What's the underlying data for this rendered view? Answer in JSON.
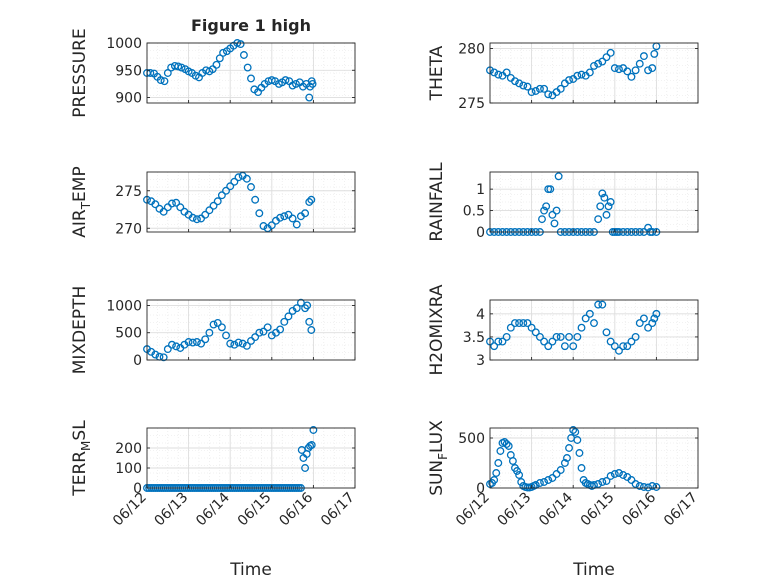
{
  "figure": {
    "title": "Figure 1 high"
  },
  "colors": {
    "marker": "#0072BD",
    "axis": "#262626",
    "grid": "#DDDDDD",
    "background": "#FFFFFF"
  },
  "chart_data": [
    {
      "id": "pressure",
      "type": "scatter",
      "title": "Figure 1 high",
      "ylabel": "PRESSURE",
      "xlabel": "",
      "ylim": [
        890,
        1000
      ],
      "yticks": [
        "900",
        "950",
        "1000"
      ],
      "ytick_values": [
        900,
        950,
        1000
      ],
      "xlim": [
        0,
        5
      ],
      "xticks": [],
      "grid": "major+minor",
      "x": [
        0,
        0.08,
        0.17,
        0.25,
        0.33,
        0.42,
        0.5,
        0.58,
        0.67,
        0.75,
        0.83,
        0.92,
        1.0,
        1.08,
        1.17,
        1.25,
        1.33,
        1.42,
        1.5,
        1.58,
        1.67,
        1.75,
        1.83,
        1.92,
        2.0,
        2.08,
        2.17,
        2.25,
        2.33,
        2.42,
        2.5,
        2.58,
        2.67,
        2.75,
        2.83,
        2.92,
        3.0,
        3.08,
        3.17,
        3.25,
        3.33,
        3.42,
        3.5,
        3.58,
        3.67,
        3.75,
        3.83,
        3.9,
        3.92,
        3.96,
        3.98
      ],
      "y": [
        945,
        945,
        944,
        938,
        932,
        930,
        945,
        955,
        958,
        957,
        955,
        952,
        948,
        945,
        940,
        937,
        945,
        950,
        948,
        952,
        960,
        972,
        982,
        985,
        990,
        995,
        1000,
        998,
        978,
        955,
        935,
        915,
        910,
        918,
        925,
        930,
        932,
        930,
        925,
        928,
        932,
        930,
        922,
        925,
        928,
        920,
        925,
        900,
        920,
        930,
        925
      ]
    },
    {
      "id": "theta",
      "type": "scatter",
      "ylabel": "THETA",
      "xlabel": "",
      "ylim": [
        275,
        280.5
      ],
      "yticks": [
        "275",
        "280"
      ],
      "ytick_values": [
        275,
        280
      ],
      "xlim": [
        0,
        5
      ],
      "xticks": [],
      "grid": "major+minor",
      "x": [
        0,
        0.1,
        0.2,
        0.3,
        0.4,
        0.5,
        0.6,
        0.7,
        0.8,
        0.9,
        1.0,
        1.1,
        1.2,
        1.3,
        1.4,
        1.5,
        1.6,
        1.7,
        1.8,
        1.9,
        2.0,
        2.1,
        2.2,
        2.3,
        2.4,
        2.5,
        2.6,
        2.7,
        2.8,
        2.9,
        3.0,
        3.1,
        3.2,
        3.3,
        3.4,
        3.5,
        3.6,
        3.7,
        3.8,
        3.9,
        3.95,
        4.0
      ],
      "y": [
        278,
        277.8,
        277.6,
        277.5,
        277.8,
        277.3,
        277,
        276.8,
        276.6,
        276.5,
        276,
        276.1,
        276.3,
        276.3,
        275.8,
        275.7,
        276,
        276.3,
        276.8,
        277.1,
        277.2,
        277.5,
        277.6,
        277.5,
        277.8,
        278.4,
        278.6,
        278.8,
        279.2,
        279.6,
        278.2,
        278.1,
        278.2,
        277.9,
        277.4,
        278,
        278.6,
        279.3,
        278,
        278.2,
        279.5,
        280.2
      ]
    },
    {
      "id": "air_temp",
      "type": "scatter",
      "ylabel": "AIR_TEMP",
      "ylabel_main": "AIR",
      "ylabel_sub": "T",
      "ylabel_rest": "EMP",
      "xlabel": "",
      "ylim": [
        269.5,
        277.5
      ],
      "yticks": [
        "270",
        "275"
      ],
      "ytick_values": [
        270,
        275
      ],
      "xlim": [
        0,
        5
      ],
      "xticks": [],
      "grid": "major+minor",
      "x": [
        0,
        0.1,
        0.2,
        0.3,
        0.4,
        0.5,
        0.6,
        0.7,
        0.8,
        0.9,
        1.0,
        1.1,
        1.2,
        1.3,
        1.4,
        1.5,
        1.6,
        1.7,
        1.8,
        1.9,
        2.0,
        2.1,
        2.2,
        2.3,
        2.4,
        2.5,
        2.6,
        2.7,
        2.8,
        2.9,
        3.0,
        3.1,
        3.2,
        3.3,
        3.4,
        3.5,
        3.6,
        3.7,
        3.8,
        3.9,
        3.95
      ],
      "y": [
        273.8,
        273.6,
        273.2,
        272.6,
        272.2,
        272.8,
        273.3,
        273.4,
        272.8,
        272.2,
        271.8,
        271.4,
        271.2,
        271.3,
        271.8,
        272.4,
        273,
        273.6,
        274.4,
        275,
        275.6,
        276.2,
        276.8,
        277,
        276.6,
        275.5,
        273.8,
        272,
        270.3,
        270,
        270.4,
        271,
        271.4,
        271.6,
        271.8,
        271.3,
        270.5,
        271.6,
        272,
        273.5,
        273.8
      ]
    },
    {
      "id": "rainfall",
      "type": "scatter",
      "ylabel": "RAINFALL",
      "xlabel": "",
      "ylim": [
        0,
        1.4
      ],
      "yticks": [
        "0",
        "0.5",
        "1"
      ],
      "ytick_values": [
        0,
        0.5,
        1
      ],
      "xlim": [
        0,
        5
      ],
      "xticks": [],
      "grid": "major+minor",
      "x": [
        0,
        0.1,
        0.2,
        0.3,
        0.4,
        0.5,
        0.6,
        0.7,
        0.8,
        0.9,
        1.0,
        1.1,
        1.2,
        1.25,
        1.3,
        1.35,
        1.4,
        1.45,
        1.5,
        1.55,
        1.6,
        1.65,
        1.7,
        1.8,
        1.9,
        2.0,
        2.1,
        2.2,
        2.3,
        2.4,
        2.5,
        2.6,
        2.65,
        2.7,
        2.75,
        2.8,
        2.85,
        2.9,
        2.95,
        3.0,
        3.05,
        3.1,
        3.2,
        3.3,
        3.4,
        3.5,
        3.6,
        3.7,
        3.8,
        3.85,
        3.9,
        4.0
      ],
      "y": [
        0,
        0,
        0,
        0,
        0,
        0,
        0,
        0,
        0,
        0,
        0,
        0,
        0,
        0.3,
        0.5,
        0.6,
        1.0,
        1.0,
        0.4,
        0.2,
        0.5,
        1.3,
        0,
        0,
        0,
        0,
        0,
        0,
        0,
        0,
        0,
        0.3,
        0.6,
        0.9,
        0.8,
        0.4,
        0.6,
        0.7,
        0,
        0,
        0,
        0,
        0,
        0,
        0,
        0,
        0,
        0,
        0.1,
        0,
        0,
        0
      ]
    },
    {
      "id": "mixdepth",
      "type": "scatter",
      "ylabel": "MIXDEPTH",
      "xlabel": "",
      "ylim": [
        0,
        1100
      ],
      "yticks": [
        "0",
        "500",
        "1000"
      ],
      "ytick_values": [
        0,
        500,
        1000
      ],
      "xlim": [
        0,
        5
      ],
      "xticks": [],
      "grid": "major+minor",
      "x": [
        0,
        0.1,
        0.2,
        0.3,
        0.4,
        0.5,
        0.6,
        0.7,
        0.8,
        0.9,
        1.0,
        1.1,
        1.2,
        1.3,
        1.4,
        1.5,
        1.6,
        1.7,
        1.8,
        1.9,
        2.0,
        2.1,
        2.2,
        2.3,
        2.4,
        2.5,
        2.6,
        2.7,
        2.8,
        2.9,
        3.0,
        3.1,
        3.2,
        3.3,
        3.4,
        3.5,
        3.6,
        3.7,
        3.8,
        3.85,
        3.9,
        3.95
      ],
      "y": [
        200,
        150,
        100,
        60,
        50,
        200,
        280,
        250,
        220,
        280,
        330,
        320,
        330,
        300,
        380,
        500,
        650,
        680,
        600,
        450,
        300,
        280,
        320,
        300,
        260,
        350,
        420,
        500,
        520,
        600,
        450,
        500,
        560,
        700,
        800,
        900,
        950,
        1050,
        950,
        1000,
        700,
        550
      ]
    },
    {
      "id": "h2omixra",
      "type": "scatter",
      "ylabel": "H2OMIXRA",
      "xlabel": "",
      "ylim": [
        3,
        4.3
      ],
      "yticks": [
        "3",
        "3.5",
        "4"
      ],
      "ytick_values": [
        3,
        3.5,
        4
      ],
      "xlim": [
        0,
        5
      ],
      "xticks": [],
      "grid": "major+minor",
      "x": [
        0,
        0.1,
        0.2,
        0.3,
        0.4,
        0.5,
        0.6,
        0.7,
        0.8,
        0.9,
        1.0,
        1.1,
        1.2,
        1.3,
        1.4,
        1.5,
        1.6,
        1.7,
        1.8,
        1.9,
        2.0,
        2.1,
        2.2,
        2.3,
        2.4,
        2.5,
        2.6,
        2.7,
        2.8,
        2.9,
        3.0,
        3.1,
        3.2,
        3.3,
        3.4,
        3.5,
        3.6,
        3.7,
        3.8,
        3.9,
        3.95,
        4.0
      ],
      "y": [
        3.4,
        3.3,
        3.4,
        3.4,
        3.5,
        3.7,
        3.8,
        3.8,
        3.8,
        3.8,
        3.7,
        3.6,
        3.5,
        3.4,
        3.3,
        3.4,
        3.5,
        3.5,
        3.3,
        3.5,
        3.3,
        3.5,
        3.7,
        3.9,
        4.0,
        3.8,
        4.2,
        4.2,
        3.6,
        3.4,
        3.3,
        3.2,
        3.3,
        3.3,
        3.4,
        3.5,
        3.8,
        3.9,
        3.7,
        3.8,
        3.9,
        4.0
      ]
    },
    {
      "id": "terr_msl",
      "type": "scatter",
      "ylabel": "TERR_MSL",
      "ylabel_main": "TERR",
      "ylabel_sub": "M",
      "ylabel_rest": "SL",
      "xlabel": "Time",
      "ylim": [
        0,
        300
      ],
      "yticks": [
        "0",
        "100",
        "200"
      ],
      "ytick_values": [
        0,
        100,
        200
      ],
      "xlim": [
        0,
        5
      ],
      "xticks": [
        "06/12",
        "06/13",
        "06/14",
        "06/15",
        "06/16",
        "06/17"
      ],
      "xtick_values": [
        0,
        1,
        2,
        3,
        4,
        5
      ],
      "grid": "major+minor",
      "x": [
        0,
        0.05,
        0.1,
        0.15,
        0.2,
        0.25,
        0.3,
        0.35,
        0.4,
        0.45,
        0.5,
        0.55,
        0.6,
        0.65,
        0.7,
        0.75,
        0.8,
        0.85,
        0.9,
        0.95,
        1.0,
        1.05,
        1.1,
        1.15,
        1.2,
        1.25,
        1.3,
        1.35,
        1.4,
        1.45,
        1.5,
        1.55,
        1.6,
        1.65,
        1.7,
        1.75,
        1.8,
        1.85,
        1.9,
        1.95,
        2.0,
        2.05,
        2.1,
        2.15,
        2.2,
        2.25,
        2.3,
        2.35,
        2.4,
        2.45,
        2.5,
        2.55,
        2.6,
        2.65,
        2.7,
        2.75,
        2.8,
        2.85,
        2.9,
        2.95,
        3.0,
        3.05,
        3.1,
        3.15,
        3.2,
        3.25,
        3.3,
        3.35,
        3.4,
        3.45,
        3.5,
        3.55,
        3.6,
        3.65,
        3.7,
        3.72,
        3.76,
        3.8,
        3.84,
        3.88,
        3.92,
        3.96,
        4.0
      ],
      "y": [
        0,
        0,
        0,
        0,
        0,
        0,
        0,
        0,
        0,
        0,
        0,
        0,
        0,
        0,
        0,
        0,
        0,
        0,
        0,
        0,
        0,
        0,
        0,
        0,
        0,
        0,
        0,
        0,
        0,
        0,
        0,
        0,
        0,
        0,
        0,
        0,
        0,
        0,
        0,
        0,
        0,
        0,
        0,
        0,
        0,
        0,
        0,
        0,
        0,
        0,
        0,
        0,
        0,
        0,
        0,
        0,
        0,
        0,
        0,
        0,
        0,
        0,
        0,
        0,
        0,
        0,
        0,
        0,
        0,
        0,
        0,
        0,
        0,
        0,
        0,
        190,
        150,
        100,
        170,
        200,
        210,
        215,
        290
      ]
    },
    {
      "id": "sun_flux",
      "type": "scatter",
      "ylabel": "SUN_FLUX",
      "ylabel_main": "SUN",
      "ylabel_sub": "F",
      "ylabel_rest": "LUX",
      "xlabel": "Time",
      "ylim": [
        0,
        600
      ],
      "yticks": [
        "0",
        "500"
      ],
      "ytick_values": [
        0,
        500
      ],
      "xlim": [
        0,
        5
      ],
      "xticks": [
        "06/12",
        "06/13",
        "06/14",
        "06/15",
        "06/16",
        "06/17"
      ],
      "xtick_values": [
        0,
        1,
        2,
        3,
        4,
        5
      ],
      "grid": "major+minor",
      "x": [
        0,
        0.05,
        0.1,
        0.15,
        0.2,
        0.25,
        0.3,
        0.35,
        0.4,
        0.45,
        0.5,
        0.55,
        0.6,
        0.65,
        0.7,
        0.75,
        0.8,
        0.85,
        0.9,
        0.95,
        1.0,
        1.05,
        1.1,
        1.2,
        1.3,
        1.4,
        1.5,
        1.6,
        1.7,
        1.8,
        1.85,
        1.9,
        1.95,
        2.0,
        2.05,
        2.1,
        2.15,
        2.2,
        2.25,
        2.3,
        2.35,
        2.4,
        2.45,
        2.5,
        2.6,
        2.7,
        2.8,
        2.9,
        3.0,
        3.1,
        3.2,
        3.3,
        3.4,
        3.5,
        3.6,
        3.7,
        3.8,
        3.9,
        4.0
      ],
      "y": [
        40,
        50,
        80,
        150,
        250,
        370,
        450,
        460,
        440,
        420,
        330,
        270,
        200,
        170,
        130,
        60,
        20,
        10,
        5,
        5,
        10,
        20,
        30,
        50,
        60,
        80,
        100,
        140,
        180,
        250,
        300,
        400,
        500,
        580,
        560,
        480,
        350,
        200,
        80,
        50,
        40,
        30,
        20,
        30,
        40,
        60,
        70,
        120,
        140,
        150,
        130,
        110,
        80,
        40,
        20,
        10,
        5,
        20,
        10
      ]
    }
  ]
}
